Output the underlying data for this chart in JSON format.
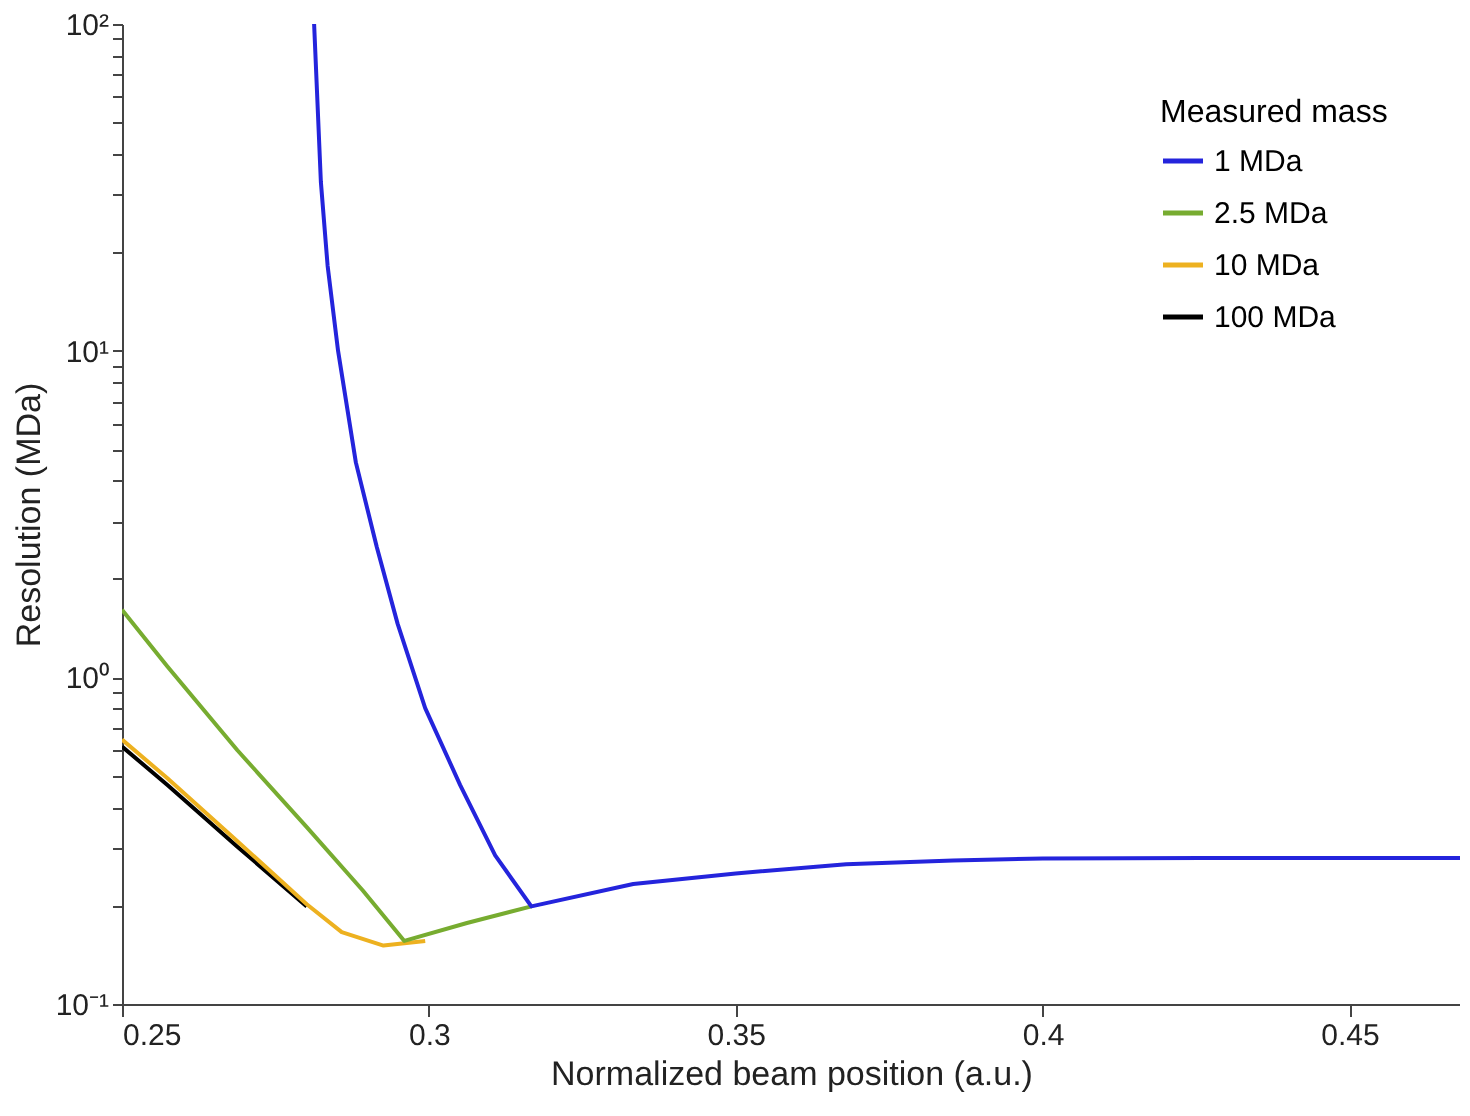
{
  "chart_data": {
    "type": "line",
    "xlabel": "Normalized beam position (a.u.)",
    "ylabel": "Resolution (MDa)",
    "legend_title": "Measured mass",
    "legend": "top right",
    "grid": false,
    "log": "y",
    "line_style": "solid",
    "marker": "none",
    "xlim": [
      0.25,
      0.468
    ],
    "xticks": [
      0.25,
      0.3,
      0.35,
      0.4,
      0.45
    ],
    "ylim": [
      0.1,
      100
    ],
    "yticks": [
      {
        "value": 0.1,
        "label": "10⁻¹"
      },
      {
        "value": 0.2,
        "label": null
      },
      {
        "value": 0.3,
        "label": null
      },
      {
        "value": 0.4,
        "label": null
      },
      {
        "value": 0.5,
        "label": null
      },
      {
        "value": 0.6,
        "label": null
      },
      {
        "value": 0.7,
        "label": null
      },
      {
        "value": 0.8,
        "label": null
      },
      {
        "value": 0.9,
        "label": null
      },
      {
        "value": 1,
        "label": "10⁰"
      },
      {
        "value": 2,
        "label": null
      },
      {
        "value": 3,
        "label": null
      },
      {
        "value": 4,
        "label": null
      },
      {
        "value": 5,
        "label": null
      },
      {
        "value": 6,
        "label": null
      },
      {
        "value": 7,
        "label": null
      },
      {
        "value": 8,
        "label": null
      },
      {
        "value": 9,
        "label": null
      },
      {
        "value": 10,
        "label": "10¹"
      },
      {
        "value": 20,
        "label": null
      },
      {
        "value": 30,
        "label": null
      },
      {
        "value": 40,
        "label": null
      },
      {
        "value": 50,
        "label": null
      },
      {
        "value": 60,
        "label": null
      },
      {
        "value": 70,
        "label": null
      },
      {
        "value": 80,
        "label": null
      },
      {
        "value": 90,
        "label": null
      },
      {
        "value": 100,
        "label": "10²"
      }
    ],
    "series": [
      {
        "name": "1 MDa",
        "color": "#2424dc",
        "x": [
          0.2813,
          0.2824,
          0.2835,
          0.2852,
          0.2881,
          0.2915,
          0.2949,
          0.2994,
          0.3051,
          0.3108,
          0.3167,
          0.3333,
          0.35,
          0.368,
          0.3854,
          0.4,
          0.426,
          0.468
        ],
        "values": [
          100,
          32.9,
          18.2,
          10,
          4.55,
          2.51,
          1.46,
          0.805,
          0.468,
          0.285,
          0.199,
          0.233,
          0.251,
          0.268,
          0.275,
          0.279,
          0.28,
          0.28
        ]
      },
      {
        "name": "2.5 MDa",
        "color": "#77ac30",
        "x": [
          0.25,
          0.2574,
          0.2688,
          0.2801,
          0.2892,
          0.296,
          0.3062,
          0.3167
        ],
        "values": [
          1.61,
          1.08,
          0.598,
          0.348,
          0.223,
          0.156,
          0.177,
          0.199
        ]
      },
      {
        "name": "10 MDa",
        "color": "#edb120",
        "x": [
          0.25,
          0.2574,
          0.2688,
          0.2801,
          0.2858,
          0.2926,
          0.2994
        ],
        "values": [
          0.645,
          0.491,
          0.315,
          0.202,
          0.166,
          0.151,
          0.156
        ]
      },
      {
        "name": "100 MDa",
        "color": "#000000",
        "x": [
          0.25,
          0.2574,
          0.2688,
          0.2801
        ],
        "values": [
          0.614,
          0.468,
          0.303,
          0.199
        ]
      }
    ]
  }
}
